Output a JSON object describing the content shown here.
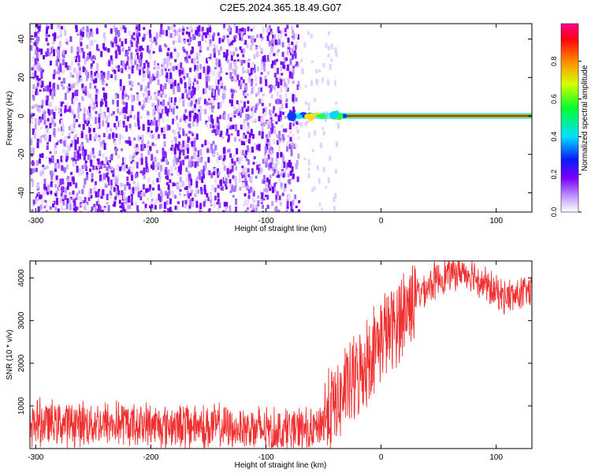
{
  "title": "C2E5.2024.365.18.49.G07",
  "chart_data": [
    {
      "type": "heatmap",
      "xlabel": "Height of straight line (km)",
      "ylabel": "Frequency (Hz)",
      "xlim": [
        -305,
        131
      ],
      "ylim": [
        -50,
        48
      ],
      "xticks": [
        -300,
        -200,
        -100,
        0,
        100
      ],
      "yticks": [
        -40,
        -20,
        0,
        20,
        40
      ],
      "colorbar": {
        "label": "Normalized spectral amplitude",
        "range": [
          0,
          1
        ],
        "ticks": [
          0.0,
          0.2,
          0.4,
          0.6,
          0.8
        ]
      },
      "features": {
        "noise_region_x": [
          -305,
          -72
        ],
        "sparse_noise_x": [
          -72,
          -38
        ],
        "signal_line_y_hz": 0,
        "signal_line_start_x": -78,
        "signal_line_amplitude": 0.9
      }
    },
    {
      "type": "line",
      "xlabel": "Height of straight line (km)",
      "ylabel": "SNR (10 * v/v)",
      "xlim": [
        -305,
        131
      ],
      "ylim": [
        0,
        4400
      ],
      "xticks": [
        -300,
        -200,
        -100,
        0,
        100
      ],
      "yticks": [
        1000,
        2000,
        3000,
        4000
      ],
      "series": [
        {
          "color": "#f03030",
          "x": [
            -305,
            -280,
            -240,
            -200,
            -160,
            -120,
            -90,
            -60,
            -50,
            -40,
            -30,
            -20,
            -10,
            0,
            10,
            20,
            30,
            40,
            50,
            60,
            70,
            80,
            90,
            100,
            110,
            120,
            131
          ],
          "y": [
            600,
            600,
            580,
            560,
            530,
            470,
            420,
            400,
            700,
            1000,
            1400,
            1700,
            2200,
            2600,
            2800,
            3200,
            3600,
            3800,
            4000,
            4100,
            4150,
            4100,
            3850,
            3650,
            3550,
            3600,
            3700
          ]
        }
      ]
    }
  ]
}
